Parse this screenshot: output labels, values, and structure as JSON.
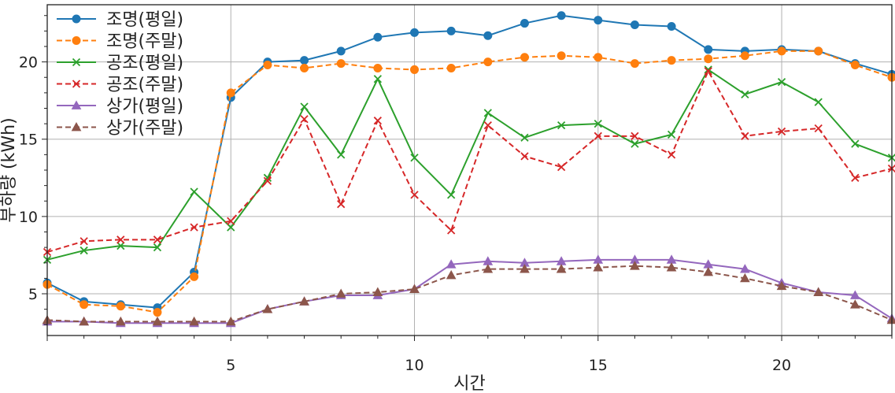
{
  "chart_data": {
    "type": "line",
    "title": "",
    "xlabel": "시간",
    "ylabel": "부하량 (kWh)",
    "xlim": [
      0,
      23
    ],
    "ylim": [
      2.3,
      23.7
    ],
    "grid": true,
    "legend_position": "top-left",
    "x_ticks": [
      {
        "value": 5,
        "label": "5"
      },
      {
        "value": 10,
        "label": "10"
      },
      {
        "value": 15,
        "label": "15"
      },
      {
        "value": 20,
        "label": "20"
      }
    ],
    "y_ticks": [
      {
        "value": 5,
        "label": "5"
      },
      {
        "value": 10,
        "label": "10"
      },
      {
        "value": 15,
        "label": "15"
      },
      {
        "value": 20,
        "label": "20"
      }
    ],
    "x": [
      0,
      1,
      2,
      3,
      4,
      5,
      6,
      7,
      8,
      9,
      10,
      11,
      12,
      13,
      14,
      15,
      16,
      17,
      18,
      19,
      20,
      21,
      22,
      23
    ],
    "series": [
      {
        "name": "조명(평일)",
        "color": "#1f77b4",
        "dash": "solid",
        "marker": "circle",
        "values": [
          5.7,
          4.5,
          4.3,
          4.1,
          6.4,
          17.7,
          20.0,
          20.1,
          20.7,
          21.6,
          21.9,
          22.0,
          21.7,
          22.5,
          23.0,
          22.7,
          22.4,
          22.3,
          20.8,
          20.7,
          20.8,
          20.7,
          19.9,
          19.2
        ]
      },
      {
        "name": "조명(주말)",
        "color": "#ff7f0e",
        "dash": "dashed",
        "marker": "circle",
        "values": [
          5.6,
          4.3,
          4.2,
          3.8,
          6.1,
          18.0,
          19.8,
          19.6,
          19.9,
          19.6,
          19.5,
          19.6,
          20.0,
          20.3,
          20.4,
          20.3,
          19.9,
          20.1,
          20.2,
          20.4,
          20.7,
          20.7,
          19.8,
          19.0
        ]
      },
      {
        "name": "공조(평일)",
        "color": "#2ca02c",
        "dash": "solid",
        "marker": "x",
        "values": [
          7.2,
          7.8,
          8.1,
          8.0,
          11.6,
          9.3,
          12.5,
          17.1,
          14.0,
          18.9,
          13.8,
          11.4,
          16.7,
          15.1,
          15.9,
          16.0,
          14.7,
          15.3,
          19.5,
          17.9,
          18.7,
          17.4,
          14.7,
          13.8
        ]
      },
      {
        "name": "공조(주말)",
        "color": "#d62728",
        "dash": "dashed",
        "marker": "x",
        "values": [
          7.7,
          8.4,
          8.5,
          8.5,
          9.3,
          9.7,
          12.3,
          16.3,
          10.8,
          16.2,
          11.4,
          9.1,
          15.9,
          13.9,
          13.2,
          15.2,
          15.2,
          14.0,
          19.4,
          15.2,
          15.5,
          15.7,
          12.5,
          13.1
        ]
      },
      {
        "name": "상가(평일)",
        "color": "#9467bd",
        "dash": "solid",
        "marker": "triangle",
        "values": [
          3.2,
          3.2,
          3.1,
          3.1,
          3.1,
          3.1,
          4.0,
          4.5,
          4.9,
          4.9,
          5.3,
          6.9,
          7.1,
          7.0,
          7.1,
          7.2,
          7.2,
          7.2,
          6.9,
          6.6,
          5.7,
          5.1,
          4.9,
          3.4
        ]
      },
      {
        "name": "상가(주말)",
        "color": "#8c564b",
        "dash": "dashed",
        "marker": "triangle",
        "values": [
          3.3,
          3.2,
          3.2,
          3.2,
          3.2,
          3.2,
          4.0,
          4.5,
          5.0,
          5.1,
          5.3,
          6.2,
          6.6,
          6.6,
          6.6,
          6.7,
          6.8,
          6.7,
          6.4,
          6.0,
          5.5,
          5.1,
          4.3,
          3.3
        ]
      }
    ]
  }
}
